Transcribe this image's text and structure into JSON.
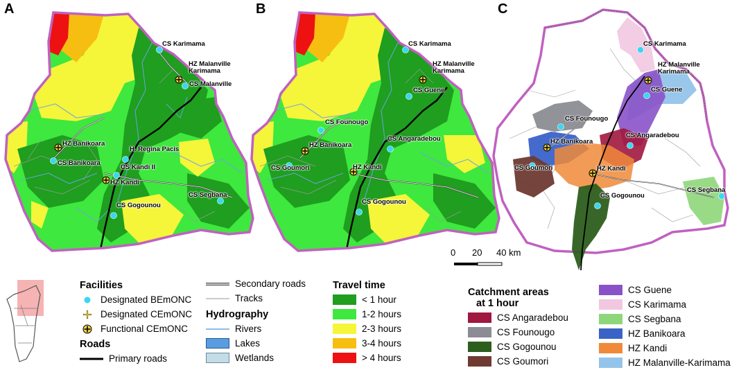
{
  "panels": {
    "a_label": "A",
    "b_label": "B",
    "c_label": "C"
  },
  "panel_a": {
    "places": [
      {
        "label": "CS Karimama",
        "type": "bemonc"
      },
      {
        "label": "HZ Malanville\nKarimama",
        "type": "functional"
      },
      {
        "label": "CS Malanville",
        "type": "bemonc"
      },
      {
        "label": "HZ Banikoara",
        "type": "functional"
      },
      {
        "label": "CS Banikoara",
        "type": "bemonc"
      },
      {
        "label": "H. Regina Pacis",
        "type": "bemonc"
      },
      {
        "label": "CS Kandi II",
        "type": "bemonc"
      },
      {
        "label": "HZ Kandi",
        "type": "functional"
      },
      {
        "label": "CS Segbana",
        "type": "bemonc"
      },
      {
        "label": "CS Gogounou",
        "type": "bemonc"
      }
    ]
  },
  "panel_b": {
    "places": [
      {
        "label": "CS Karimama",
        "type": "bemonc"
      },
      {
        "label": "HZ Malanville\nKarimama",
        "type": "functional"
      },
      {
        "label": "CS Guene",
        "type": "bemonc"
      },
      {
        "label": "CS Founougo",
        "type": "bemonc"
      },
      {
        "label": "HZ Banikoara",
        "type": "functional"
      },
      {
        "label": "CS Angaradebou",
        "type": "bemonc"
      },
      {
        "label": "CS Goumori",
        "type": "bemonc"
      },
      {
        "label": "HZ Kandi",
        "type": "functional"
      },
      {
        "label": "CS Gogounou",
        "type": "bemonc"
      }
    ]
  },
  "panel_c": {
    "places": [
      {
        "label": "CS Karimama",
        "type": "bemonc"
      },
      {
        "label": "HZ Malanville\nKarimama",
        "type": "functional"
      },
      {
        "label": "CS Guene",
        "type": "bemonc"
      },
      {
        "label": "CS Founougo",
        "type": "bemonc"
      },
      {
        "label": "HZ Banikoara",
        "type": "functional"
      },
      {
        "label": "CS Angaradebou",
        "type": "bemonc"
      },
      {
        "label": "CS Goumori",
        "type": "bemonc"
      },
      {
        "label": "HZ Kandi",
        "type": "functional"
      },
      {
        "label": "CS Segbana",
        "type": "bemonc"
      },
      {
        "label": "CS Gogounou",
        "type": "bemonc"
      }
    ]
  },
  "scale_bar": {
    "label_0": "0",
    "label_20": "20",
    "label_40": "40 km"
  },
  "legend": {
    "facilities": {
      "title": "Facilities",
      "items": [
        "Designated BEmONC",
        "Designated CEmONC",
        "Functional CEmONC"
      ]
    },
    "roads": {
      "title": "Roads",
      "items": [
        "Primary roads",
        "Secondary roads",
        "Tracks"
      ]
    },
    "hydrography": {
      "title": "Hydrography",
      "items": [
        "Rivers",
        "Lakes",
        "Wetlands"
      ]
    },
    "travel_time": {
      "title": "Travel time",
      "items": [
        {
          "label": "< 1 hour",
          "color": "#1f9e1f"
        },
        {
          "label": "1-2 hours",
          "color": "#3ee83e"
        },
        {
          "label": "2-3 hours",
          "color": "#f5f53a"
        },
        {
          "label": "3-4 hours",
          "color": "#f7be12"
        },
        {
          "label": "> 4 hours",
          "color": "#ee1111"
        }
      ]
    },
    "catchment": {
      "title_line1": "Catchment areas",
      "title_line2": "at 1 hour",
      "items": [
        {
          "label": "CS Angaradebou",
          "color": "#a0173f"
        },
        {
          "label": "CS Founougo",
          "color": "#8c8c94"
        },
        {
          "label": "CS Gogounou",
          "color": "#2d5e1e"
        },
        {
          "label": "CS Goumori",
          "color": "#6e3a32"
        },
        {
          "label": "CS Guene",
          "color": "#8a52c8"
        },
        {
          "label": "CS Karimama",
          "color": "#f1c8e0"
        },
        {
          "label": "CS Segbana",
          "color": "#8ed67a"
        },
        {
          "label": "HZ Banikoara",
          "color": "#3a63c8"
        },
        {
          "label": "HZ Kandi",
          "color": "#f08a3a"
        },
        {
          "label": "HZ Malanville-Karimama",
          "color": "#94c4ea"
        }
      ]
    }
  },
  "colors": {
    "border": "#c061c0",
    "rivers": "#6aa6e0",
    "bemonc": "#38d8f0",
    "roads": "#000000"
  }
}
